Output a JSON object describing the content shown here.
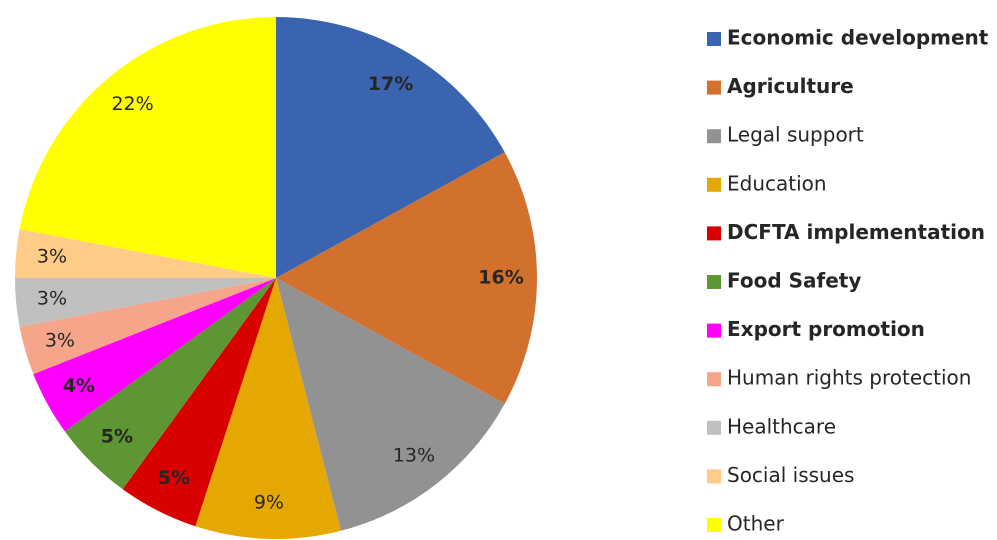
{
  "chart_data": {
    "type": "pie",
    "categories": [
      "Economic development",
      "Agriculture",
      "Legal support",
      "Education",
      "DCFTA implementation",
      "Food Safety",
      "Export promotion",
      "Human rights protection",
      "Healthcare",
      "Social issues",
      "Other"
    ],
    "values": [
      17,
      16,
      13,
      9,
      5,
      5,
      4,
      3,
      3,
      3,
      22
    ],
    "value_labels": [
      "17%",
      "16%",
      "13%",
      "9%",
      "5%",
      "5%",
      "4%",
      "3%",
      "3%",
      "3%",
      "22%"
    ],
    "colors": [
      "#3a63b0",
      "#d2702e",
      "#929292",
      "#e5a800",
      "#d90000",
      "#5d9632",
      "#ff00ff",
      "#f4a58a",
      "#c0c0c0",
      "#ffcc88",
      "#ffff00"
    ],
    "bold_labels": [
      true,
      true,
      false,
      false,
      true,
      true,
      true,
      false,
      false,
      false,
      false
    ]
  }
}
